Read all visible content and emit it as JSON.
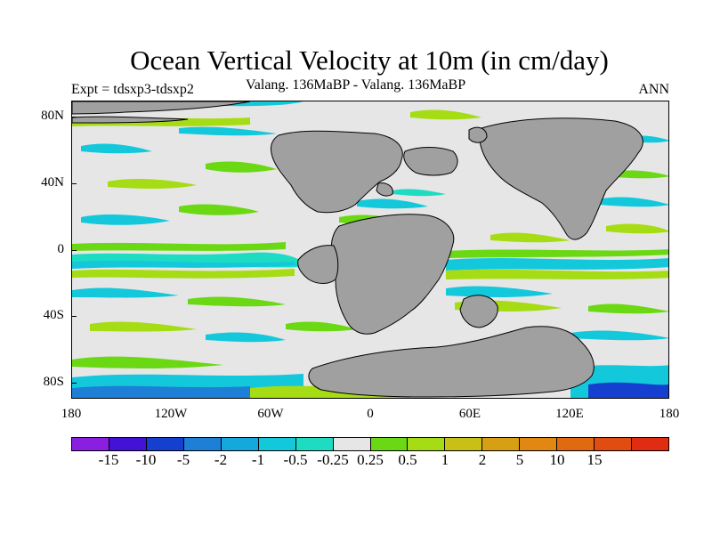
{
  "title": "Ocean Vertical Velocity at 10m (in cm/day)",
  "subtitle_left": "Expt = tdsxp3-tdsxp2",
  "subtitle_center": "Valang. 136MaBP - Valang. 136MaBP",
  "subtitle_right": "ANN",
  "map": {
    "lat_labels": [
      "80N",
      "40N",
      "0",
      "40S",
      "80S"
    ],
    "lon_labels": [
      "180",
      "120W",
      "60W",
      "0",
      "60E",
      "120E",
      "180"
    ],
    "land_color": "#a0a0a0",
    "ocean_neutral_color": "#e6e6e6"
  },
  "colorbar": {
    "colors": [
      "#8a1fe0",
      "#4412d6",
      "#1540cf",
      "#1d80d6",
      "#14a8dc",
      "#14c8dc",
      "#1edcc2",
      "#e6e6e6",
      "#6ad812",
      "#a6dc14",
      "#c8c014",
      "#d6a012",
      "#e08812",
      "#e06a12",
      "#e04c12",
      "#e02c10"
    ],
    "labels": [
      "-15",
      "-10",
      "-5",
      "-2",
      "-1",
      "-0.5",
      "-0.25",
      "0.25",
      "0.5",
      "1",
      "2",
      "5",
      "10",
      "15"
    ]
  }
}
